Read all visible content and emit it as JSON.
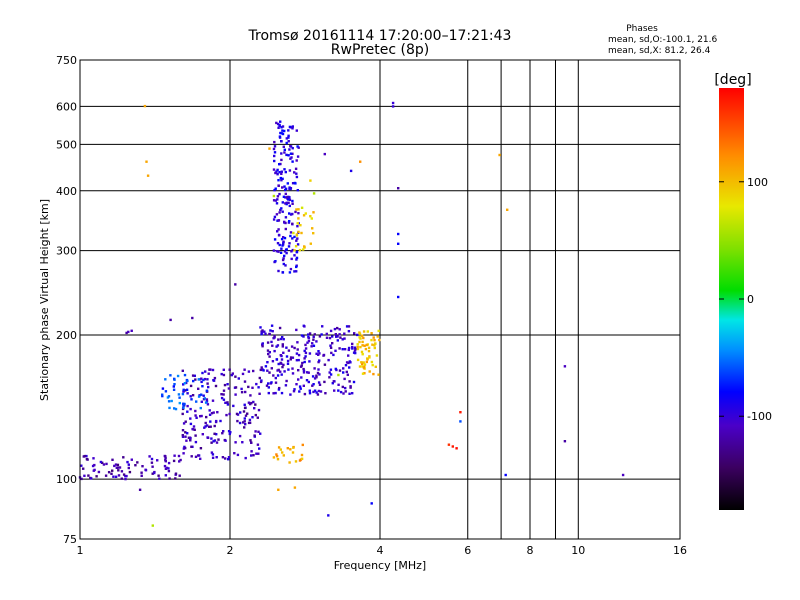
{
  "chart_data": {
    "type": "scatter",
    "title": "Tromsø 20161114 17:20:00–17:21:43",
    "subtitle": "RwPretec (8p)",
    "xlabel": "Frequency [MHz]",
    "ylabel": "Stationary phase Virtual Height [km]",
    "x_scale": "log",
    "y_scale": "log",
    "xlim": [
      1,
      16
    ],
    "ylim": [
      75,
      750
    ],
    "x_ticks": [
      1,
      2,
      4,
      6,
      8,
      10,
      16
    ],
    "x_tick_labels": [
      "1",
      "2",
      "4",
      "6",
      "8",
      "10",
      "16"
    ],
    "x_grid": [
      1,
      2,
      4,
      6,
      7,
      8,
      9,
      10,
      16
    ],
    "y_ticks": [
      75,
      100,
      200,
      300,
      400,
      500,
      600,
      750
    ],
    "y_tick_labels": [
      "75",
      "100",
      "200",
      "300",
      "400",
      "500",
      "600",
      "750"
    ],
    "grid": true,
    "legend": {
      "title": "Phases",
      "lines": [
        "mean, sd,O:-100.1, 21.6",
        "mean, sd,X:  81.2, 26.4"
      ],
      "placement": "top-right"
    },
    "colorbar": {
      "label": "[deg]",
      "range": [
        -180,
        180
      ],
      "ticks": [
        100,
        0,
        -100
      ],
      "tick_labels": [
        "100",
        "0",
        "-100"
      ]
    },
    "point_groups": [
      {
        "name": "O-trace low",
        "x_range": [
          1.0,
          1.6
        ],
        "y_range": [
          100,
          112
        ],
        "phase": -115,
        "count": 90
      },
      {
        "name": "O-trace rise",
        "x_range": [
          1.6,
          2.3
        ],
        "y_range": [
          110,
          170
        ],
        "phase": -110,
        "count": 220
      },
      {
        "name": "F1 band",
        "x_range": [
          2.3,
          3.6
        ],
        "y_range": [
          150,
          210
        ],
        "phase": -105,
        "count": 260
      },
      {
        "name": "F2 cusp",
        "x_range": [
          2.45,
          2.75
        ],
        "y_range": [
          270,
          560
        ],
        "phase": -95,
        "count": 200
      },
      {
        "name": "cyan patch",
        "x_range": [
          1.45,
          1.8
        ],
        "y_range": [
          140,
          165
        ],
        "phase": -60,
        "count": 45
      },
      {
        "name": "X-trace yellow",
        "x_range": [
          3.6,
          4.0
        ],
        "y_range": [
          165,
          205
        ],
        "phase": 100,
        "count": 60
      },
      {
        "name": "X-trace cusp",
        "x_range": [
          2.65,
          2.95
        ],
        "y_range": [
          300,
          370
        ],
        "phase": 90,
        "count": 25
      },
      {
        "name": "yellow low",
        "x_range": [
          2.45,
          2.8
        ],
        "y_range": [
          108,
          118
        ],
        "phase": 110,
        "count": 20
      }
    ],
    "points": [
      {
        "x": 1.35,
        "y": 601,
        "phase": 110
      },
      {
        "x": 1.36,
        "y": 460,
        "phase": 110
      },
      {
        "x": 1.37,
        "y": 430,
        "phase": 110
      },
      {
        "x": 1.4,
        "y": 80,
        "phase": 60
      },
      {
        "x": 1.25,
        "y": 203,
        "phase": -110
      },
      {
        "x": 1.27,
        "y": 204,
        "phase": -110
      },
      {
        "x": 1.24,
        "y": 202,
        "phase": -120
      },
      {
        "x": 1.52,
        "y": 215,
        "phase": -120
      },
      {
        "x": 1.68,
        "y": 217,
        "phase": -120
      },
      {
        "x": 2.05,
        "y": 255,
        "phase": -120
      },
      {
        "x": 2.4,
        "y": 490,
        "phase": 110
      },
      {
        "x": 3.1,
        "y": 477,
        "phase": -110
      },
      {
        "x": 3.65,
        "y": 460,
        "phase": 120
      },
      {
        "x": 4.25,
        "y": 610,
        "phase": -100
      },
      {
        "x": 4.25,
        "y": 600,
        "phase": -100
      },
      {
        "x": 4.35,
        "y": 405,
        "phase": -120
      },
      {
        "x": 4.35,
        "y": 325,
        "phase": -80
      },
      {
        "x": 4.35,
        "y": 310,
        "phase": -80
      },
      {
        "x": 4.35,
        "y": 240,
        "phase": -80
      },
      {
        "x": 5.5,
        "y": 118,
        "phase": 160
      },
      {
        "x": 5.6,
        "y": 117,
        "phase": 170
      },
      {
        "x": 5.7,
        "y": 116,
        "phase": 175
      },
      {
        "x": 5.8,
        "y": 138,
        "phase": 170
      },
      {
        "x": 5.8,
        "y": 132,
        "phase": -60
      },
      {
        "x": 6.95,
        "y": 475,
        "phase": 110
      },
      {
        "x": 7.2,
        "y": 365,
        "phase": 110
      },
      {
        "x": 7.15,
        "y": 102,
        "phase": -80
      },
      {
        "x": 9.4,
        "y": 172,
        "phase": -110
      },
      {
        "x": 9.4,
        "y": 120,
        "phase": -120
      },
      {
        "x": 12.3,
        "y": 102,
        "phase": -110
      },
      {
        "x": 3.15,
        "y": 84,
        "phase": -90
      },
      {
        "x": 3.85,
        "y": 89,
        "phase": -80
      },
      {
        "x": 2.7,
        "y": 96,
        "phase": 110
      },
      {
        "x": 2.5,
        "y": 95,
        "phase": 110
      },
      {
        "x": 1.32,
        "y": 95,
        "phase": -120
      },
      {
        "x": 2.45,
        "y": 390,
        "phase": 60
      },
      {
        "x": 2.95,
        "y": 395,
        "phase": 60
      },
      {
        "x": 3.5,
        "y": 440,
        "phase": -90
      },
      {
        "x": 2.9,
        "y": 420,
        "phase": 90
      },
      {
        "x": 3.3,
        "y": 165,
        "phase": 60
      }
    ]
  }
}
